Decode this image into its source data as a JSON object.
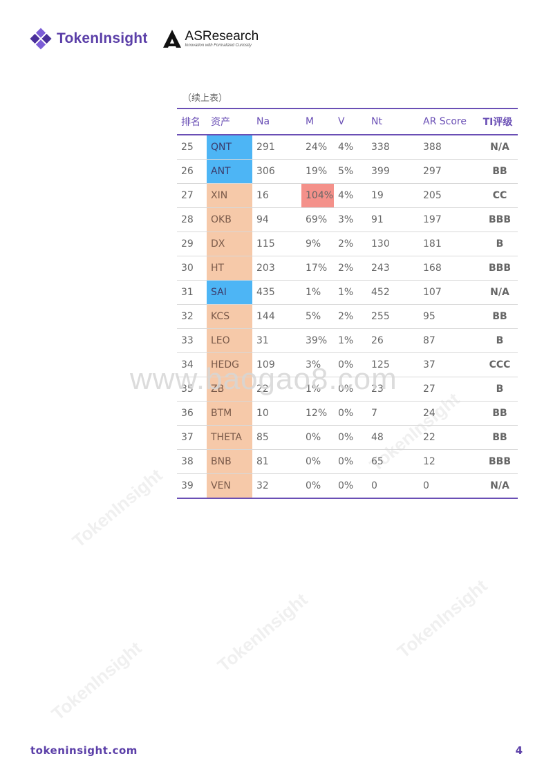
{
  "header": {
    "tokeninsight_logo_text": "TokenInsight",
    "asresearch_title": "ASResearch",
    "asresearch_tagline": "Innovation with Formalized Curiosity"
  },
  "caption": "（续上表）",
  "table": {
    "headers": [
      "排名",
      "资产",
      "Na",
      "M",
      "V",
      "Nt",
      "AR Score",
      "TI评级"
    ],
    "rows": [
      {
        "rank": "25",
        "asset": "QNT",
        "asset_color": "blue",
        "na": "291",
        "m": "24%",
        "v": "4%",
        "nt": "338",
        "ar": "388",
        "ti": "N/A"
      },
      {
        "rank": "26",
        "asset": "ANT",
        "asset_color": "blue",
        "na": "306",
        "m": "19%",
        "v": "5%",
        "nt": "399",
        "ar": "297",
        "ti": "BB"
      },
      {
        "rank": "27",
        "asset": "XIN",
        "asset_color": "peach",
        "na": "16",
        "m": "104%",
        "m_highlight": true,
        "v": "4%",
        "nt": "19",
        "ar": "205",
        "ti": "CC"
      },
      {
        "rank": "28",
        "asset": "OKB",
        "asset_color": "peach",
        "na": "94",
        "m": "69%",
        "v": "3%",
        "nt": "91",
        "ar": "197",
        "ti": "BBB"
      },
      {
        "rank": "29",
        "asset": "DX",
        "asset_color": "peach",
        "na": "115",
        "m": "9%",
        "v": "2%",
        "nt": "130",
        "ar": "181",
        "ti": "B"
      },
      {
        "rank": "30",
        "asset": "HT",
        "asset_color": "peach",
        "na": "203",
        "m": "17%",
        "v": "2%",
        "nt": "243",
        "ar": "168",
        "ti": "BBB"
      },
      {
        "rank": "31",
        "asset": "SAI",
        "asset_color": "blue",
        "na": "435",
        "m": "1%",
        "v": "1%",
        "nt": "452",
        "ar": "107",
        "ti": "N/A"
      },
      {
        "rank": "32",
        "asset": "KCS",
        "asset_color": "peach",
        "na": "144",
        "m": "5%",
        "v": "2%",
        "nt": "255",
        "ar": "95",
        "ti": "BB"
      },
      {
        "rank": "33",
        "asset": "LEO",
        "asset_color": "peach",
        "na": "31",
        "m": "39%",
        "v": "1%",
        "nt": "26",
        "ar": "87",
        "ti": "B"
      },
      {
        "rank": "34",
        "asset": "HEDG",
        "asset_color": "peach",
        "na": "109",
        "m": "3%",
        "v": "0%",
        "nt": "125",
        "ar": "37",
        "ti": "CCC"
      },
      {
        "rank": "35",
        "asset": "ZB",
        "asset_color": "peach",
        "na": "22",
        "m": "1%",
        "v": "0%",
        "nt": "23",
        "ar": "27",
        "ti": "B"
      },
      {
        "rank": "36",
        "asset": "BTM",
        "asset_color": "peach",
        "na": "10",
        "m": "12%",
        "v": "0%",
        "nt": "7",
        "ar": "24",
        "ti": "BB"
      },
      {
        "rank": "37",
        "asset": "THETA",
        "asset_color": "peach",
        "na": "85",
        "m": "0%",
        "v": "0%",
        "nt": "48",
        "ar": "22",
        "ti": "BB"
      },
      {
        "rank": "38",
        "asset": "BNB",
        "asset_color": "peach",
        "na": "81",
        "m": "0%",
        "v": "0%",
        "nt": "65",
        "ar": "12",
        "ti": "BBB"
      },
      {
        "rank": "39",
        "asset": "VEN",
        "asset_color": "peach",
        "na": "32",
        "m": "0%",
        "v": "0%",
        "nt": "0",
        "ar": "0",
        "ti": "N/A"
      }
    ]
  },
  "watermark": "www.baogao8.com",
  "footer": {
    "url": "tokeninsight.com",
    "page_number": "4"
  },
  "colors": {
    "brand_purple": "#5b3fa8",
    "asset_blue": "#4db5f5",
    "asset_peach": "#f6c9a9",
    "m_highlight": "#f4918a"
  }
}
